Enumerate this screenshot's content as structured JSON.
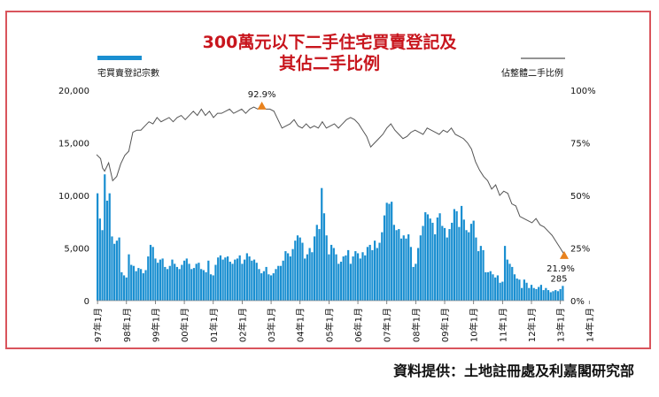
{
  "chart_data": {
    "type": "bar+line",
    "title_line1": "300萬元以下二手住宅買賣登記及",
    "title_line2": "其佔二手比例",
    "legend": [
      {
        "name": "宅買賣登記宗數",
        "type": "bar",
        "color": "#1a8fd1"
      },
      {
        "name": "佔整體二手比例",
        "type": "line",
        "color": "#555555"
      }
    ],
    "y_left": {
      "min": 0,
      "max": 20000,
      "ticks": [
        "0",
        "5,000",
        "10,000",
        "15,000",
        "20,000"
      ]
    },
    "y_right": {
      "min": 0,
      "max": 100,
      "ticks": [
        "0%",
        "25%",
        "50%",
        "75%",
        "100%"
      ]
    },
    "x_ticks": [
      "97年1月",
      "98年1月",
      "99年1月",
      "00年1月",
      "01年1月",
      "02年1月",
      "03年1月",
      "04年1月",
      "05年1月",
      "06年1月",
      "07年1月",
      "08年1月",
      "09年1月",
      "10年1月",
      "11年1月",
      "12年1月",
      "13年1月",
      "14年1月"
    ],
    "bar_values": [
      10200,
      7800,
      6700,
      12000,
      9500,
      10200,
      6100,
      5400,
      5700,
      6000,
      2700,
      2400,
      2200,
      4400,
      3400,
      3300,
      2800,
      3100,
      3000,
      2600,
      2900,
      4200,
      5300,
      5100,
      4000,
      3600,
      3900,
      4000,
      3200,
      3000,
      3300,
      3900,
      3500,
      3200,
      3000,
      3400,
      3800,
      4000,
      3500,
      3000,
      3100,
      3500,
      3600,
      3000,
      2900,
      2700,
      3800,
      2500,
      2400,
      3400,
      4100,
      4300,
      3900,
      4100,
      4200,
      3700,
      3500,
      3900,
      4000,
      4300,
      3500,
      3900,
      4500,
      4200,
      3800,
      3900,
      3600,
      3000,
      2600,
      2800,
      3200,
      2500,
      2400,
      2600,
      3000,
      3300,
      3300,
      3800,
      4700,
      4500,
      4200,
      4900,
      5700,
      6200,
      6000,
      5500,
      4000,
      4400,
      5000,
      4600,
      6100,
      7200,
      6800,
      10700,
      8300,
      6200,
      4400,
      5300,
      5000,
      4400,
      3500,
      3700,
      4200,
      4300,
      4800,
      3500,
      4200,
      4700,
      4500,
      4000,
      4600,
      4300,
      5100,
      5300,
      4800,
      5700,
      5000,
      5500,
      6500,
      8100,
      9300,
      9200,
      9400,
      7200,
      6700,
      6800,
      5900,
      6200,
      5900,
      6300,
      5100,
      3200,
      3500,
      5000,
      6200,
      7100,
      8400,
      8200,
      7800,
      7400,
      6300,
      7900,
      8300,
      7100,
      6900,
      6000,
      6800,
      7400,
      8700,
      8500,
      7000,
      9000,
      7700,
      6700,
      6500,
      7300,
      7600,
      6000,
      4700,
      5200,
      4800,
      2700,
      2700,
      2800,
      2500,
      2200,
      2400,
      1700,
      1800,
      5200,
      3900,
      3500,
      3200,
      2500,
      2100,
      2000,
      1200,
      2000,
      1700,
      1200,
      1500,
      1200,
      1100,
      1300,
      1500,
      1000,
      1200,
      1000,
      800,
      900,
      1000,
      900,
      1100,
      1400
    ],
    "line_points": [
      [
        0,
        69.4
      ],
      [
        2,
        67.5
      ],
      [
        3,
        63
      ],
      [
        4,
        61.5
      ],
      [
        6,
        65.5
      ],
      [
        8,
        57
      ],
      [
        10,
        59
      ],
      [
        12,
        65
      ],
      [
        14,
        69
      ],
      [
        16,
        71
      ],
      [
        18,
        80
      ],
      [
        20,
        81
      ],
      [
        22,
        81
      ],
      [
        24,
        83
      ],
      [
        26,
        85
      ],
      [
        28,
        84
      ],
      [
        30,
        87
      ],
      [
        32,
        85
      ],
      [
        34,
        86
      ],
      [
        36,
        87
      ],
      [
        38,
        85
      ],
      [
        40,
        87
      ],
      [
        42,
        88
      ],
      [
        44,
        86
      ],
      [
        46,
        88
      ],
      [
        48,
        90
      ],
      [
        50,
        88
      ],
      [
        52,
        91
      ],
      [
        54,
        88
      ],
      [
        56,
        90
      ],
      [
        58,
        87
      ],
      [
        60,
        89
      ],
      [
        62,
        89
      ],
      [
        64,
        90
      ],
      [
        66,
        91
      ],
      [
        68,
        89
      ],
      [
        70,
        90
      ],
      [
        72,
        91
      ],
      [
        74,
        89
      ],
      [
        76,
        91
      ],
      [
        78,
        92
      ],
      [
        80,
        91
      ],
      [
        82,
        92.9
      ],
      [
        84,
        91
      ],
      [
        86,
        91
      ],
      [
        88,
        90
      ],
      [
        90,
        86
      ],
      [
        92,
        82
      ],
      [
        94,
        83
      ],
      [
        96,
        84
      ],
      [
        98,
        86
      ],
      [
        100,
        83
      ],
      [
        102,
        82
      ],
      [
        104,
        84
      ],
      [
        106,
        82
      ],
      [
        108,
        83
      ],
      [
        110,
        82
      ],
      [
        112,
        85
      ],
      [
        114,
        82
      ],
      [
        116,
        83
      ],
      [
        118,
        84
      ],
      [
        120,
        82
      ],
      [
        122,
        84
      ],
      [
        124,
        86
      ],
      [
        126,
        87
      ],
      [
        128,
        86
      ],
      [
        130,
        84
      ],
      [
        132,
        81
      ],
      [
        134,
        78
      ],
      [
        136,
        73
      ],
      [
        138,
        75
      ],
      [
        140,
        77
      ],
      [
        142,
        79
      ],
      [
        144,
        82
      ],
      [
        146,
        84
      ],
      [
        148,
        81
      ],
      [
        150,
        79
      ],
      [
        152,
        77
      ],
      [
        154,
        78
      ],
      [
        156,
        80
      ],
      [
        158,
        81
      ],
      [
        160,
        80
      ],
      [
        162,
        79
      ],
      [
        164,
        82
      ],
      [
        166,
        81
      ],
      [
        168,
        80
      ],
      [
        170,
        79
      ],
      [
        172,
        81
      ],
      [
        174,
        80
      ],
      [
        176,
        82
      ],
      [
        178,
        79
      ],
      [
        180,
        78
      ],
      [
        182,
        77
      ],
      [
        184,
        75
      ],
      [
        186,
        72
      ],
      [
        188,
        66
      ],
      [
        190,
        62
      ],
      [
        192,
        59
      ],
      [
        194,
        57
      ],
      [
        196,
        53
      ],
      [
        198,
        55
      ],
      [
        200,
        50
      ],
      [
        202,
        52
      ],
      [
        204,
        51
      ],
      [
        206,
        46
      ],
      [
        208,
        45
      ],
      [
        210,
        40
      ],
      [
        212,
        39
      ],
      [
        214,
        38
      ],
      [
        216,
        37
      ],
      [
        218,
        39
      ],
      [
        220,
        36
      ],
      [
        222,
        35
      ],
      [
        224,
        33
      ],
      [
        226,
        31
      ],
      [
        228,
        28
      ],
      [
        230,
        25
      ],
      [
        232,
        21.9
      ]
    ],
    "annotations": [
      "92.9%",
      "21.9%",
      "285"
    ],
    "peak_index": 82,
    "last_index": 232
  },
  "source": "資料提供：土地註冊處及利嘉閣研究部"
}
